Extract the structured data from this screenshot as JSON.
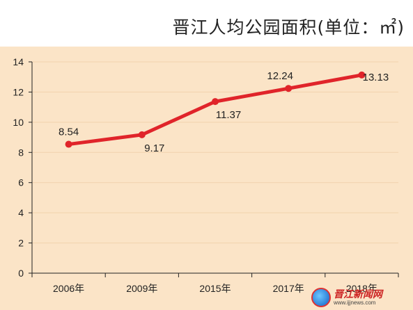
{
  "title": "晋江人均公园面积(单位：㎡)",
  "colors": {
    "background_top": "#ffffff",
    "plot_background": "#fbe4c7",
    "line": "#e0242a",
    "grid": "#f1d2ad",
    "axis": "#222222"
  },
  "chart_data": {
    "type": "line",
    "title": "晋江人均公园面积(单位：㎡)",
    "categories": [
      "2006年",
      "2009年",
      "2015年",
      "2017年",
      "2018年"
    ],
    "series": [
      {
        "values": [
          8.54,
          9.17,
          11.37,
          12.24,
          13.13
        ]
      }
    ],
    "data_labels": [
      "8.54",
      "9.17",
      "11.37",
      "12.24",
      "13.13"
    ],
    "y_ticks": [
      "0",
      "2",
      "4",
      "6",
      "8",
      "10",
      "12",
      "14"
    ],
    "ylim": [
      0,
      14
    ],
    "grid": true,
    "legend": "none"
  },
  "watermark": {
    "logo_icon": "jinjiang-news-logo",
    "name": "晋江新闻网",
    "url": "www.ijjnews.com"
  }
}
